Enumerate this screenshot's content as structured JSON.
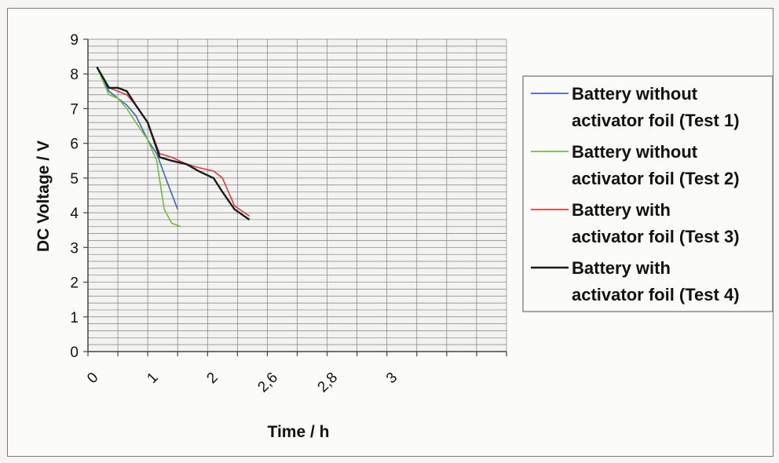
{
  "chart_data": {
    "type": "line",
    "xlabel": "Time / h",
    "ylabel": "DC Voltage / V",
    "ylim": [
      0,
      9
    ],
    "y_ticks": [
      "0",
      "1",
      "2",
      "3",
      "4",
      "5",
      "6",
      "7",
      "8",
      "9"
    ],
    "x_tick_labels": [
      "0",
      "1",
      "2",
      "2,6",
      "2,8",
      "3"
    ],
    "grid": true,
    "legend_position": "right",
    "series": [
      {
        "name": "Battery without activator foil (Test 1)",
        "color": "#3a63c4",
        "points": [
          [
            0.3,
            8.2
          ],
          [
            0.7,
            7.5
          ],
          [
            1.0,
            7.3
          ],
          [
            1.3,
            7.1
          ],
          [
            1.6,
            6.8
          ],
          [
            2.0,
            6.1
          ],
          [
            2.3,
            5.7
          ],
          [
            2.6,
            5.0
          ],
          [
            3.0,
            4.1
          ]
        ]
      },
      {
        "name": "Battery without activator foil (Test 2)",
        "color": "#6fbf3a",
        "points": [
          [
            0.3,
            8.2
          ],
          [
            0.7,
            7.4
          ],
          [
            1.0,
            7.3
          ],
          [
            1.3,
            7.0
          ],
          [
            1.6,
            6.6
          ],
          [
            2.0,
            6.1
          ],
          [
            2.3,
            5.5
          ],
          [
            2.55,
            4.1
          ],
          [
            2.8,
            3.7
          ],
          [
            3.1,
            3.6
          ]
        ]
      },
      {
        "name": "Battery with activator foil (Test 3)",
        "color": "#e03a3a",
        "points": [
          [
            0.3,
            8.2
          ],
          [
            0.7,
            7.6
          ],
          [
            1.0,
            7.5
          ],
          [
            1.3,
            7.4
          ],
          [
            1.6,
            7.1
          ],
          [
            2.0,
            6.6
          ],
          [
            2.4,
            5.7
          ],
          [
            2.8,
            5.6
          ],
          [
            3.3,
            5.4
          ],
          [
            3.7,
            5.3
          ],
          [
            4.2,
            5.2
          ],
          [
            4.5,
            5.0
          ],
          [
            4.9,
            4.2
          ],
          [
            5.4,
            3.9
          ]
        ]
      },
      {
        "name": "Battery with activator foil (Test 4)",
        "color": "#1a1a1a",
        "points": [
          [
            0.3,
            8.2
          ],
          [
            0.7,
            7.6
          ],
          [
            1.0,
            7.6
          ],
          [
            1.3,
            7.5
          ],
          [
            1.6,
            7.1
          ],
          [
            2.0,
            6.6
          ],
          [
            2.4,
            5.6
          ],
          [
            2.8,
            5.5
          ],
          [
            3.3,
            5.4
          ],
          [
            3.7,
            5.2
          ],
          [
            4.2,
            5.0
          ],
          [
            4.5,
            4.6
          ],
          [
            4.9,
            4.1
          ],
          [
            5.4,
            3.8
          ]
        ]
      }
    ]
  }
}
